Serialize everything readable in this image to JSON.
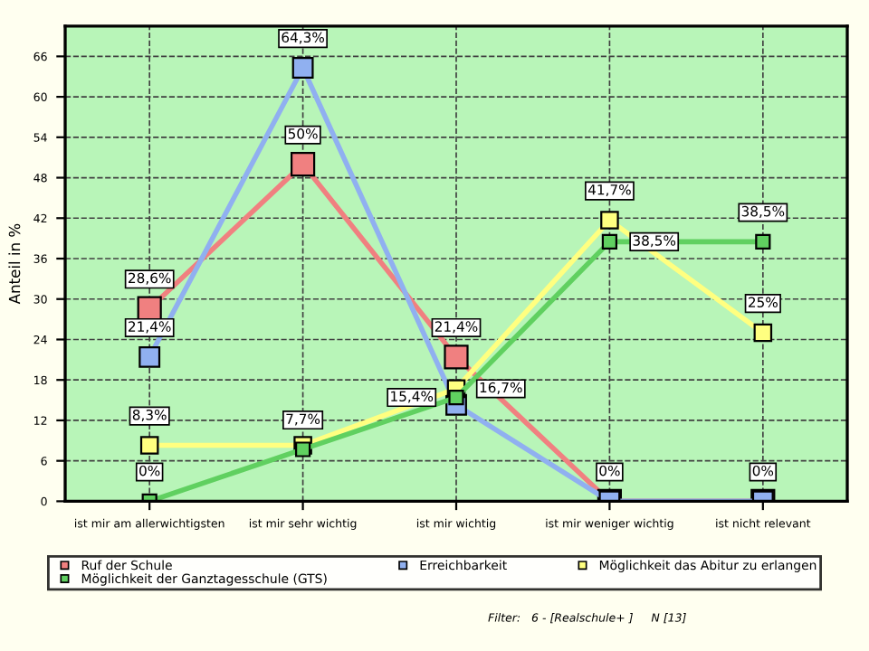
{
  "chart_data": {
    "type": "line",
    "ylabel": "Anteil in %",
    "categories": [
      "ist mir am allerwichtigsten",
      "ist mir sehr wichtig",
      "ist mir wichtig",
      "ist mir weniger wichtig",
      "ist nicht relevant"
    ],
    "series": [
      {
        "name": "Ruf der Schule",
        "color": "#f08080",
        "values": [
          28.6,
          50,
          21.4,
          0,
          0
        ],
        "value_labels": [
          "28,6%",
          "50%",
          "21,4%",
          null,
          null
        ]
      },
      {
        "name": "Erreichbarkeit",
        "color": "#90b0f0",
        "values": [
          21.4,
          64.3,
          14.3,
          0,
          0
        ],
        "value_labels": [
          "21,4%",
          "64,3%",
          null,
          "0%",
          "0%"
        ]
      },
      {
        "name": "Möglichkeit das Abitur zu erlangen",
        "color": "#ffff80",
        "values": [
          8.3,
          8.3,
          16.7,
          41.7,
          25
        ],
        "value_labels": [
          "8,3%",
          null,
          "16,7%",
          "41,7%",
          "25%"
        ]
      },
      {
        "name": "Möglichkeit der Ganztagesschule (GTS)",
        "color": "#60d060",
        "values": [
          0,
          7.7,
          15.4,
          38.5,
          38.5
        ],
        "value_labels": [
          "0%",
          "7,7%",
          "15,4%",
          "38,5%",
          "38,5%"
        ]
      }
    ],
    "ylim": [
      0,
      70.5
    ],
    "yticks": [
      0,
      6,
      12,
      18,
      24,
      30,
      36,
      42,
      48,
      54,
      60,
      66
    ],
    "grid": true,
    "legend": "bottom",
    "marker": "square",
    "line_style": "solid",
    "annotations": [
      "Filter:   6 - [Realschule+ ]     N [13]"
    ]
  }
}
